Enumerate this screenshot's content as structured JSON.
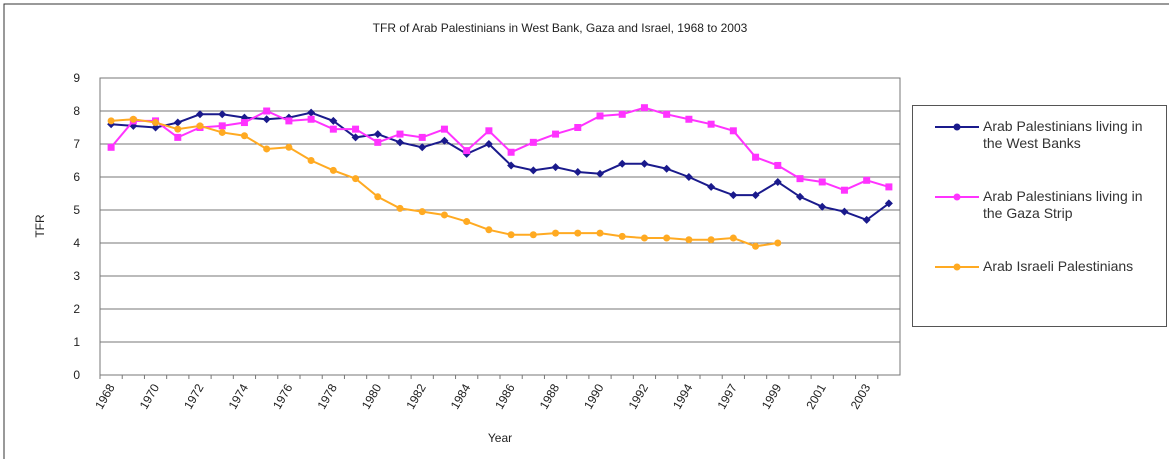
{
  "chart_data": {
    "type": "line",
    "title": "TFR of Arab Palestinians in West Bank, Gaza and Israel, 1968 to 2003",
    "x_label": "Year",
    "y_label": "TFR",
    "categories": [
      "1968",
      null,
      "1970",
      null,
      "1972",
      null,
      "1974",
      null,
      "1976",
      null,
      "1978",
      null,
      "1980",
      null,
      "1982",
      null,
      "1984",
      null,
      "1986",
      null,
      "1988",
      null,
      "1990",
      null,
      "1992",
      null,
      "1994",
      null,
      "1997",
      null,
      "1999",
      null,
      "2001",
      null,
      "2003",
      null
    ],
    "series": [
      {
        "name": "Arab Palestinians living in the West Banks",
        "color": "#1a1a8c",
        "values": [
          7.6,
          7.55,
          7.5,
          7.65,
          7.9,
          7.9,
          7.8,
          7.75,
          7.8,
          7.95,
          7.7,
          7.2,
          7.3,
          7.05,
          6.9,
          7.1,
          6.7,
          7.0,
          6.35,
          6.2,
          6.3,
          6.15,
          6.1,
          6.4,
          6.4,
          6.25,
          6.0,
          5.7,
          5.45,
          5.45,
          5.85,
          5.4,
          5.1,
          4.95,
          4.7,
          5.2
        ]
      },
      {
        "name": "Arab Palestinians living in the Gaza Strip",
        "color": "#ff33ff",
        "values": [
          6.9,
          7.7,
          7.7,
          7.2,
          7.5,
          7.55,
          7.65,
          8.0,
          7.7,
          7.75,
          7.45,
          7.45,
          7.05,
          7.3,
          7.2,
          7.45,
          6.8,
          7.4,
          6.75,
          7.05,
          7.3,
          7.5,
          7.85,
          7.9,
          8.1,
          7.9,
          7.75,
          7.6,
          7.4,
          6.6,
          6.35,
          5.95,
          5.85,
          5.6,
          5.9,
          5.7
        ]
      },
      {
        "name": "Arab Israeli Palestinians",
        "color": "#ffaa22",
        "values": [
          7.7,
          7.75,
          7.65,
          7.45,
          7.55,
          7.35,
          7.25,
          6.85,
          6.9,
          6.5,
          6.2,
          5.95,
          5.4,
          5.05,
          4.95,
          4.85,
          4.65,
          4.4,
          4.25,
          4.25,
          4.3,
          4.3,
          4.3,
          4.2,
          4.15,
          4.15,
          4.1,
          4.1,
          4.15,
          3.9,
          4.0,
          null,
          null,
          null,
          null,
          null
        ]
      }
    ],
    "ylim": [
      0,
      9
    ],
    "yticks": [
      0,
      1,
      2,
      3,
      4,
      5,
      6,
      7,
      8,
      9
    ],
    "grid": true,
    "legend": "right"
  }
}
